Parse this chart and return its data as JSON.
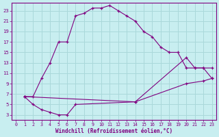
{
  "xlabel": "Windchill (Refroidissement éolien,°C)",
  "background_color": "#c8eef0",
  "grid_color": "#aad8da",
  "line_color": "#800080",
  "xlim": [
    -0.5,
    23.5
  ],
  "ylim": [
    2,
    24.5
  ],
  "xticks": [
    0,
    1,
    2,
    3,
    4,
    5,
    6,
    7,
    8,
    9,
    10,
    11,
    12,
    13,
    14,
    15,
    16,
    17,
    18,
    19,
    20,
    21,
    22,
    23
  ],
  "yticks": [
    3,
    5,
    7,
    9,
    11,
    13,
    15,
    17,
    19,
    21,
    23
  ],
  "curve1_x": [
    1,
    2,
    3,
    4,
    5,
    6,
    7,
    8,
    9,
    10,
    11,
    12,
    13,
    14,
    15,
    16,
    17,
    18,
    19,
    20,
    21,
    22,
    23
  ],
  "curve1_y": [
    6.5,
    6.5,
    10,
    13,
    17,
    17,
    22,
    22.5,
    23.5,
    23.5,
    24,
    23,
    22,
    21,
    19,
    18,
    16,
    15,
    15,
    12,
    12,
    12,
    12
  ],
  "curve2_x": [
    1,
    2,
    3,
    4,
    5,
    6,
    7,
    14,
    20,
    21,
    22,
    23
  ],
  "curve2_y": [
    6.5,
    5,
    4,
    3.5,
    3,
    3,
    5,
    5.5,
    14,
    12,
    12,
    10
  ],
  "curve3_x": [
    1,
    14,
    20,
    22,
    23
  ],
  "curve3_y": [
    6.5,
    5.5,
    9,
    9.5,
    10
  ]
}
